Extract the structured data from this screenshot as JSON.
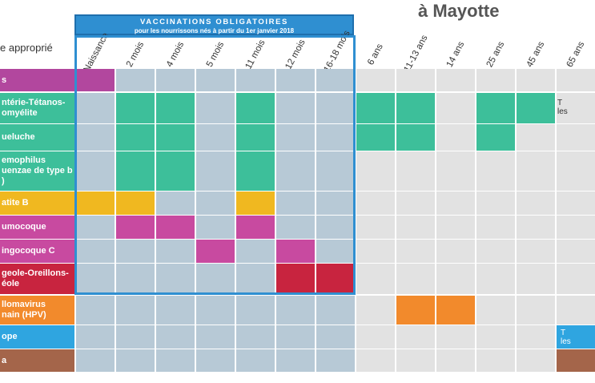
{
  "title_fragment": "à Mayotte",
  "banner": {
    "line1": "VACCINATIONS OBLIGATOIRES",
    "line2": "pour les nourrissons nés à partir du 1er janvier 2018"
  },
  "label_column_header": "e approprié",
  "ages": [
    "Naissance",
    "2 mois",
    "4 mois",
    "5 mois",
    "11 mois",
    "12 mois",
    "16-18 mois",
    "6 ans",
    "11-13 ans",
    "14 ans",
    "25 ans",
    "45 ans",
    "65 ans"
  ],
  "vaccines": [
    {
      "label": "s",
      "color": "#b2479e",
      "cells": [
        0
      ]
    },
    {
      "label": "ntérie-Tétanos-\nomyélite",
      "color": "#3dbf9a",
      "cells": [
        1,
        2,
        4,
        7,
        8,
        10,
        11
      ]
    },
    {
      "label": "ueluche",
      "color": "#3dbf9a",
      "cells": [
        1,
        2,
        4,
        7,
        8,
        10
      ]
    },
    {
      "label": "emophilus\nuenzae de type b\n)",
      "color": "#3dbf9a",
      "cells": [
        1,
        2,
        4
      ]
    },
    {
      "label": "atite B",
      "color": "#f0b820",
      "cells": [
        0,
        1,
        4
      ]
    },
    {
      "label": "umocoque",
      "color": "#c84aa0",
      "cells": [
        1,
        2,
        4
      ]
    },
    {
      "label": "ingocoque C",
      "color": "#c84aa0",
      "cells": [
        3,
        5
      ]
    },
    {
      "label": "geole-Oreillons-\néole",
      "color": "#c8243f",
      "cells": [
        5,
        6
      ]
    },
    {
      "label": "llomavirus\nnain (HPV)",
      "color": "#f28a2c",
      "cells": [
        8,
        9
      ]
    },
    {
      "label": "ope",
      "color": "#2fa5e0",
      "cells": [
        12
      ]
    },
    {
      "label": "a",
      "color": "#a4654a",
      "cells": [
        12
      ]
    }
  ],
  "side_notes": {
    "dtp_65": "T\nles",
    "grippe_65": "T\nles"
  }
}
